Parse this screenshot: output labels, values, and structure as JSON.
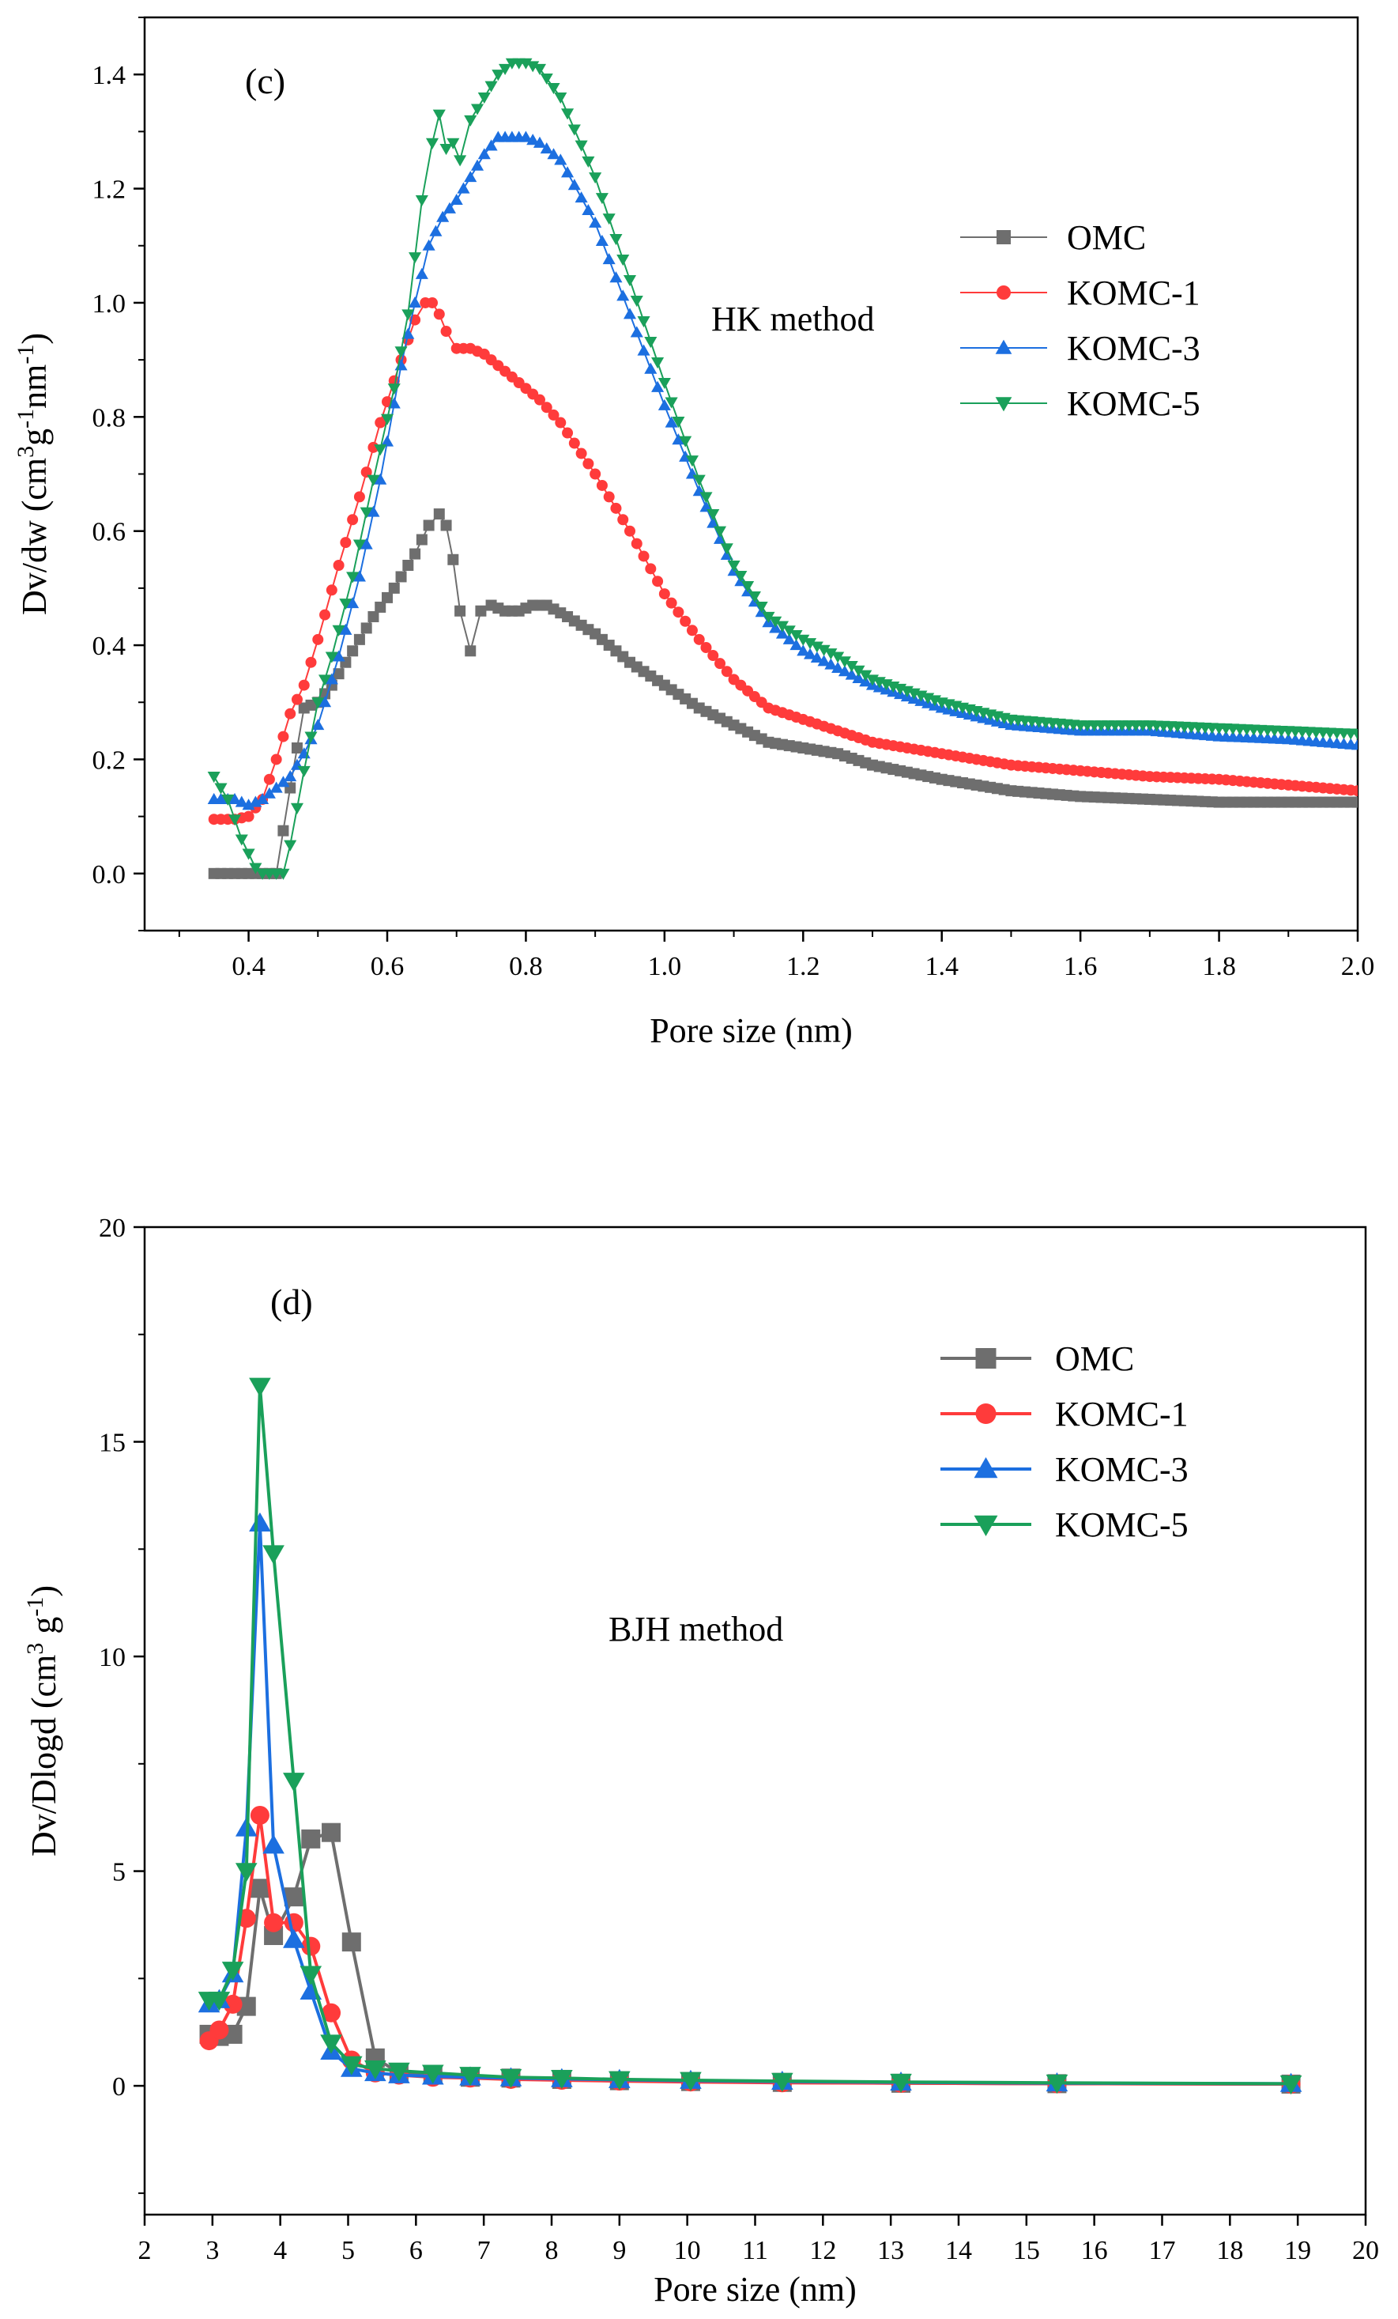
{
  "chart_data": [
    {
      "type": "line",
      "panel_label": "(c)",
      "annotation": "HK method",
      "xlabel": "Pore size (nm)",
      "ylabel_parts": {
        "pre": "Dv/dw (cm",
        "sup1": "3",
        "mid1": "g",
        "sup2": "-1",
        "mid2": "nm",
        "sup3": "-1",
        "post": ")"
      },
      "xlim": [
        0.25,
        2.0
      ],
      "ylim": [
        -0.1,
        1.5
      ],
      "x_ticks": [
        0.4,
        0.6,
        0.8,
        1.0,
        1.2,
        1.4,
        1.6,
        1.8,
        2.0
      ],
      "x_tick_labels": [
        "0.4",
        "0.6",
        "0.8",
        "1.0",
        "1.2",
        "1.4",
        "1.6",
        "1.8",
        "2.0"
      ],
      "y_ticks": [
        0.0,
        0.2,
        0.4,
        0.6,
        0.8,
        1.0,
        1.2,
        1.4
      ],
      "y_tick_labels": [
        "0.0",
        "0.2",
        "0.4",
        "0.6",
        "0.8",
        "1.0",
        "1.2",
        "1.4"
      ],
      "legend_position": "right",
      "series": [
        {
          "name": "OMC",
          "color": "#6e6e6e",
          "marker": "square",
          "x": [
            0.35,
            0.38,
            0.42,
            0.44,
            0.46,
            0.48,
            0.5,
            0.52,
            0.55,
            0.58,
            0.61,
            0.64,
            0.66,
            0.675,
            0.685,
            0.695,
            0.705,
            0.72,
            0.735,
            0.75,
            0.77,
            0.79,
            0.81,
            0.83,
            0.86,
            0.9,
            0.95,
            1.0,
            1.05,
            1.1,
            1.15,
            1.2,
            1.25,
            1.3,
            1.4,
            1.5,
            1.55,
            1.6,
            1.7,
            1.8,
            1.9,
            2.0
          ],
          "y": [
            0.0,
            0.0,
            0.0,
            0.0,
            0.15,
            0.29,
            0.3,
            0.33,
            0.39,
            0.45,
            0.5,
            0.56,
            0.61,
            0.63,
            0.61,
            0.55,
            0.46,
            0.39,
            0.46,
            0.47,
            0.46,
            0.46,
            0.47,
            0.47,
            0.45,
            0.42,
            0.37,
            0.33,
            0.29,
            0.26,
            0.23,
            0.22,
            0.21,
            0.19,
            0.165,
            0.145,
            0.14,
            0.135,
            0.13,
            0.125,
            0.125,
            0.125
          ]
        },
        {
          "name": "KOMC-1",
          "color": "#ff3b3b",
          "marker": "circle",
          "x": [
            0.35,
            0.38,
            0.4,
            0.42,
            0.44,
            0.46,
            0.48,
            0.5,
            0.53,
            0.56,
            0.59,
            0.62,
            0.64,
            0.655,
            0.665,
            0.675,
            0.685,
            0.7,
            0.72,
            0.74,
            0.76,
            0.78,
            0.8,
            0.82,
            0.85,
            0.9,
            0.95,
            1.0,
            1.05,
            1.1,
            1.15,
            1.2,
            1.25,
            1.3,
            1.4,
            1.5,
            1.6,
            1.7,
            1.8,
            1.9,
            2.0
          ],
          "y": [
            0.095,
            0.095,
            0.1,
            0.13,
            0.2,
            0.28,
            0.33,
            0.41,
            0.54,
            0.66,
            0.79,
            0.9,
            0.97,
            1.0,
            1.0,
            0.98,
            0.95,
            0.92,
            0.92,
            0.91,
            0.89,
            0.87,
            0.85,
            0.83,
            0.79,
            0.7,
            0.6,
            0.49,
            0.41,
            0.34,
            0.29,
            0.27,
            0.25,
            0.23,
            0.21,
            0.19,
            0.18,
            0.17,
            0.165,
            0.155,
            0.145
          ]
        },
        {
          "name": "KOMC-3",
          "color": "#1c6fe0",
          "marker": "triangle-up",
          "x": [
            0.35,
            0.38,
            0.4,
            0.42,
            0.44,
            0.46,
            0.48,
            0.5,
            0.53,
            0.56,
            0.59,
            0.62,
            0.64,
            0.66,
            0.68,
            0.7,
            0.72,
            0.74,
            0.76,
            0.78,
            0.8,
            0.82,
            0.85,
            0.9,
            0.95,
            1.0,
            1.05,
            1.1,
            1.15,
            1.2,
            1.25,
            1.3,
            1.4,
            1.5,
            1.6,
            1.7,
            1.8,
            1.9,
            2.0
          ],
          "y": [
            0.13,
            0.13,
            0.12,
            0.13,
            0.15,
            0.17,
            0.21,
            0.26,
            0.38,
            0.52,
            0.69,
            0.89,
            1.0,
            1.1,
            1.15,
            1.18,
            1.22,
            1.26,
            1.29,
            1.29,
            1.29,
            1.28,
            1.25,
            1.14,
            0.98,
            0.82,
            0.67,
            0.53,
            0.44,
            0.39,
            0.36,
            0.33,
            0.29,
            0.26,
            0.25,
            0.25,
            0.24,
            0.235,
            0.225
          ]
        },
        {
          "name": "KOMC-5",
          "color": "#1aa05a",
          "marker": "triangle-down",
          "x": [
            0.35,
            0.37,
            0.39,
            0.41,
            0.42,
            0.43,
            0.44,
            0.45,
            0.46,
            0.48,
            0.5,
            0.52,
            0.55,
            0.58,
            0.61,
            0.63,
            0.65,
            0.665,
            0.675,
            0.685,
            0.695,
            0.705,
            0.72,
            0.74,
            0.76,
            0.78,
            0.8,
            0.82,
            0.85,
            0.9,
            0.95,
            1.0,
            1.05,
            1.1,
            1.15,
            1.2,
            1.25,
            1.3,
            1.4,
            1.5,
            1.6,
            1.7,
            1.8,
            1.9,
            2.0
          ],
          "y": [
            0.17,
            0.13,
            0.06,
            0.01,
            0.0,
            0.0,
            0.0,
            0.0,
            0.05,
            0.18,
            0.3,
            0.38,
            0.52,
            0.69,
            0.85,
            0.98,
            1.18,
            1.28,
            1.33,
            1.27,
            1.28,
            1.25,
            1.32,
            1.36,
            1.4,
            1.42,
            1.42,
            1.41,
            1.36,
            1.22,
            1.04,
            0.86,
            0.69,
            0.54,
            0.45,
            0.41,
            0.38,
            0.34,
            0.3,
            0.27,
            0.26,
            0.26,
            0.255,
            0.25,
            0.245
          ]
        }
      ]
    },
    {
      "type": "line",
      "panel_label": "(d)",
      "annotation": "BJH method",
      "xlabel": "Pore size (nm)",
      "ylabel_parts": {
        "pre": "Dv/Dlogd (cm",
        "sup1": "3",
        "mid1": " g",
        "sup2": "-1",
        "post": ")"
      },
      "xlim": [
        2,
        20
      ],
      "ylim": [
        -3,
        20
      ],
      "x_ticks": [
        2,
        3,
        4,
        5,
        6,
        7,
        8,
        9,
        10,
        11,
        12,
        13,
        14,
        15,
        16,
        17,
        18,
        19,
        20
      ],
      "x_tick_labels": [
        "2",
        "3",
        "4",
        "5",
        "6",
        "7",
        "8",
        "9",
        "10",
        "11",
        "12",
        "13",
        "14",
        "15",
        "16",
        "17",
        "18",
        "19",
        "20"
      ],
      "y_ticks": [
        0,
        5,
        10,
        15,
        20
      ],
      "y_tick_labels": [
        "0",
        "5",
        "10",
        "15",
        "20"
      ],
      "legend_position": "top-right",
      "series": [
        {
          "name": "OMC",
          "color": "#6e6e6e",
          "marker": "square",
          "x": [
            2.95,
            3.1,
            3.3,
            3.5,
            3.7,
            3.9,
            4.2,
            4.45,
            4.75,
            5.05,
            5.4,
            5.75,
            6.25,
            6.8,
            7.4,
            8.15,
            9.0,
            10.05,
            11.4,
            13.15,
            15.45,
            18.9
          ],
          "y": [
            1.2,
            1.15,
            1.2,
            1.85,
            4.6,
            3.5,
            4.4,
            5.75,
            5.9,
            3.35,
            0.65,
            0.3,
            0.25,
            0.2,
            0.18,
            0.15,
            0.12,
            0.1,
            0.08,
            0.06,
            0.05,
            0.04
          ]
        },
        {
          "name": "KOMC-1",
          "color": "#ff3b3b",
          "marker": "circle",
          "x": [
            2.95,
            3.1,
            3.3,
            3.5,
            3.7,
            3.9,
            4.2,
            4.45,
            4.75,
            5.05,
            5.4,
            5.75,
            6.25,
            6.8,
            7.4,
            8.15,
            9.0,
            10.05,
            11.4,
            13.15,
            15.45,
            18.9
          ],
          "y": [
            1.05,
            1.3,
            1.9,
            3.9,
            6.3,
            3.8,
            3.8,
            3.25,
            1.7,
            0.6,
            0.3,
            0.25,
            0.2,
            0.18,
            0.15,
            0.13,
            0.11,
            0.09,
            0.07,
            0.06,
            0.05,
            0.04
          ]
        },
        {
          "name": "KOMC-3",
          "color": "#1c6fe0",
          "marker": "triangle-up",
          "x": [
            2.95,
            3.1,
            3.3,
            3.5,
            3.7,
            3.9,
            4.2,
            4.45,
            4.75,
            5.05,
            5.4,
            5.75,
            6.25,
            6.8,
            7.4,
            8.15,
            9.0,
            10.05,
            11.4,
            13.15,
            15.45,
            18.9
          ],
          "y": [
            1.9,
            2.0,
            2.6,
            6.0,
            13.1,
            5.6,
            3.4,
            2.2,
            0.8,
            0.4,
            0.3,
            0.25,
            0.22,
            0.2,
            0.18,
            0.16,
            0.14,
            0.12,
            0.1,
            0.08,
            0.06,
            0.05
          ]
        },
        {
          "name": "KOMC-5",
          "color": "#1aa05a",
          "marker": "triangle-down",
          "x": [
            2.95,
            3.1,
            3.3,
            3.5,
            3.7,
            3.9,
            4.2,
            4.45,
            4.75,
            5.05,
            5.4,
            5.75,
            6.25,
            6.8,
            7.4,
            8.15,
            9.0,
            10.05,
            11.4,
            13.15,
            15.45,
            18.9
          ],
          "y": [
            2.0,
            2.0,
            2.7,
            5.0,
            16.3,
            12.4,
            7.1,
            2.6,
            1.0,
            0.5,
            0.4,
            0.35,
            0.3,
            0.25,
            0.2,
            0.18,
            0.15,
            0.13,
            0.11,
            0.09,
            0.07,
            0.05
          ]
        }
      ]
    }
  ]
}
